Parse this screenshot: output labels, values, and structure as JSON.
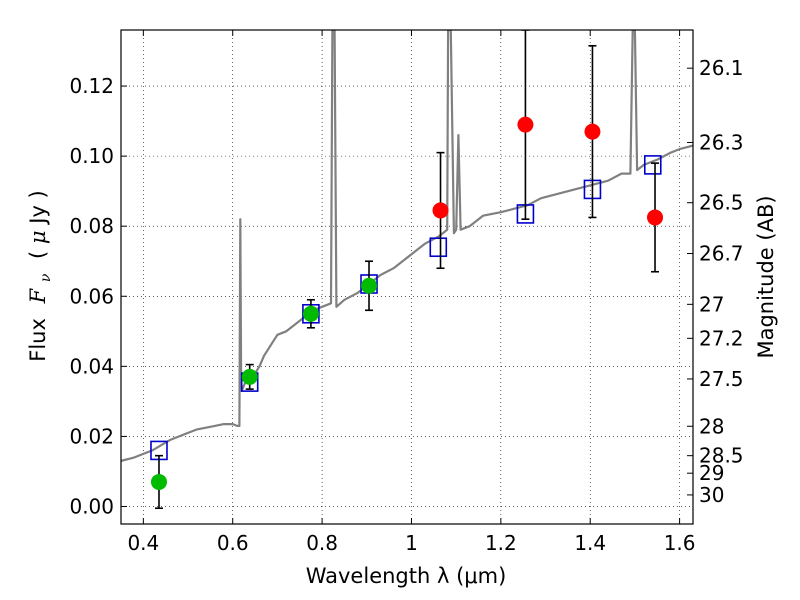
{
  "chart_data": {
    "type": "scatter",
    "title": "",
    "xlabel": "Wavelength  λ (μm)",
    "ylabel_parts": {
      "prefix": "Flux",
      "symbol": "F",
      "subscript": "ν",
      "unit_open": "( ",
      "unit_mu": "μ",
      "unit_rest": "Jy )"
    },
    "ylabel_right": "Magnitude (AB)",
    "xlim": [
      0.35,
      1.63
    ],
    "ylim": [
      -0.005,
      0.136
    ],
    "grid": true,
    "x_ticks": [
      {
        "value": 0.4,
        "label": "0.4"
      },
      {
        "value": 0.6,
        "label": "0.6"
      },
      {
        "value": 0.8,
        "label": "0.8"
      },
      {
        "value": 1.0,
        "label": "1"
      },
      {
        "value": 1.2,
        "label": "1.2"
      },
      {
        "value": 1.4,
        "label": "1.4"
      },
      {
        "value": 1.6,
        "label": "1.6"
      }
    ],
    "y_ticks": [
      {
        "value": 0.0,
        "label": "0.00"
      },
      {
        "value": 0.02,
        "label": "0.02"
      },
      {
        "value": 0.04,
        "label": "0.04"
      },
      {
        "value": 0.06,
        "label": "0.06"
      },
      {
        "value": 0.08,
        "label": "0.08"
      },
      {
        "value": 0.1,
        "label": "0.10"
      },
      {
        "value": 0.12,
        "label": "0.12"
      }
    ],
    "mag_ticks": [
      {
        "flux": 0.1251,
        "label": "26.1"
      },
      {
        "flux": 0.1039,
        "label": "26.3"
      },
      {
        "flux": 0.0867,
        "label": "26.5"
      },
      {
        "flux": 0.0722,
        "label": "26.7"
      },
      {
        "flux": 0.0577,
        "label": "27"
      },
      {
        "flux": 0.048,
        "label": "27.2"
      },
      {
        "flux": 0.0364,
        "label": "27.5"
      },
      {
        "flux": 0.0229,
        "label": "28"
      },
      {
        "flux": 0.0145,
        "label": "28.5"
      },
      {
        "flux": 0.0095,
        "label": "29"
      },
      {
        "flux": 0.0033,
        "label": "30"
      }
    ],
    "series": [
      {
        "name": "model_spectrum",
        "style": "line",
        "color": "#808080",
        "points": [
          [
            0.35,
            0.013
          ],
          [
            0.38,
            0.014
          ],
          [
            0.4,
            0.015
          ],
          [
            0.42,
            0.016
          ],
          [
            0.44,
            0.0175
          ],
          [
            0.46,
            0.019
          ],
          [
            0.48,
            0.02
          ],
          [
            0.5,
            0.021
          ],
          [
            0.52,
            0.022
          ],
          [
            0.54,
            0.0225
          ],
          [
            0.56,
            0.023
          ],
          [
            0.58,
            0.0235
          ],
          [
            0.6,
            0.0235
          ],
          [
            0.61,
            0.023
          ],
          [
            0.615,
            0.023
          ],
          [
            0.617,
            0.082
          ],
          [
            0.619,
            0.033
          ],
          [
            0.62,
            0.033
          ],
          [
            0.63,
            0.036
          ],
          [
            0.64,
            0.037
          ],
          [
            0.65,
            0.038
          ],
          [
            0.66,
            0.04
          ],
          [
            0.67,
            0.043
          ],
          [
            0.68,
            0.045
          ],
          [
            0.69,
            0.047
          ],
          [
            0.7,
            0.049
          ],
          [
            0.72,
            0.05
          ],
          [
            0.74,
            0.052
          ],
          [
            0.76,
            0.054
          ],
          [
            0.78,
            0.056
          ],
          [
            0.8,
            0.057
          ],
          [
            0.82,
            0.058
          ],
          [
            0.823,
            0.136
          ],
          [
            0.828,
            0.136
          ],
          [
            0.832,
            0.057
          ],
          [
            0.85,
            0.059
          ],
          [
            0.88,
            0.061
          ],
          [
            0.9,
            0.063
          ],
          [
            0.93,
            0.066
          ],
          [
            0.96,
            0.068
          ],
          [
            1.0,
            0.072
          ],
          [
            1.03,
            0.075
          ],
          [
            1.06,
            0.077
          ],
          [
            1.08,
            0.079
          ],
          [
            1.082,
            0.136
          ],
          [
            1.088,
            0.136
          ],
          [
            1.095,
            0.078
          ],
          [
            1.1,
            0.079
          ],
          [
            1.105,
            0.106
          ],
          [
            1.11,
            0.079
          ],
          [
            1.13,
            0.08
          ],
          [
            1.16,
            0.083
          ],
          [
            1.2,
            0.084
          ],
          [
            1.23,
            0.085
          ],
          [
            1.26,
            0.086
          ],
          [
            1.29,
            0.088
          ],
          [
            1.32,
            0.089
          ],
          [
            1.35,
            0.09
          ],
          [
            1.38,
            0.091
          ],
          [
            1.41,
            0.092
          ],
          [
            1.44,
            0.093
          ],
          [
            1.47,
            0.095
          ],
          [
            1.49,
            0.095
          ],
          [
            1.495,
            0.136
          ],
          [
            1.5,
            0.136
          ],
          [
            1.505,
            0.096
          ],
          [
            1.52,
            0.0975
          ],
          [
            1.55,
            0.099
          ],
          [
            1.58,
            0.101
          ],
          [
            1.6,
            0.102
          ],
          [
            1.63,
            0.103
          ]
        ]
      },
      {
        "name": "model_photometry",
        "style": "open-square",
        "color": "#0000cc",
        "points": [
          [
            0.435,
            0.016
          ],
          [
            0.638,
            0.0355
          ],
          [
            0.775,
            0.055
          ],
          [
            0.905,
            0.0635
          ],
          [
            1.06,
            0.074
          ],
          [
            1.255,
            0.0835
          ],
          [
            1.405,
            0.0905
          ],
          [
            1.54,
            0.0975
          ]
        ]
      },
      {
        "name": "detections",
        "style": "filled-circle",
        "color": "#00bb00",
        "points": [
          {
            "x": 0.435,
            "y": 0.007,
            "err": 0.0075
          },
          {
            "x": 0.638,
            "y": 0.037,
            "err": 0.0035
          },
          {
            "x": 0.775,
            "y": 0.055,
            "err": 0.004
          },
          {
            "x": 0.905,
            "y": 0.063,
            "err": 0.007
          }
        ]
      },
      {
        "name": "upper_limits",
        "style": "filled-circle",
        "color": "#ff0000",
        "points": [
          {
            "x": 1.065,
            "y": 0.0845,
            "err": 0.0165
          },
          {
            "x": 1.255,
            "y": 0.109,
            "err": 0.027
          },
          {
            "x": 1.405,
            "y": 0.107,
            "err": 0.0245
          },
          {
            "x": 1.545,
            "y": 0.0825,
            "err": 0.0155
          }
        ]
      }
    ]
  }
}
